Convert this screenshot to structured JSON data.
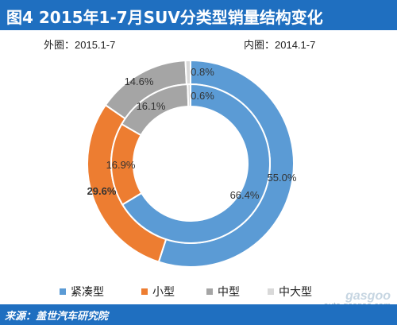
{
  "header": {
    "title": "图4  2015年1-7月SUV分类型销量结构变化"
  },
  "subtitles": {
    "outer": "外圈：2015.1-7",
    "inner": "内圈：2014.1-7"
  },
  "chart_data": {
    "type": "pie",
    "variant": "double-donut",
    "categories": [
      "紧凑型",
      "小型",
      "中型",
      "中大型"
    ],
    "colors": [
      "#5b9bd5",
      "#ed7d31",
      "#a5a5a5",
      "#d9d9d9"
    ],
    "series": [
      {
        "name": "外圈：2015.1-7",
        "ring": "outer",
        "values": [
          55.0,
          29.6,
          14.6,
          0.8
        ],
        "labels": [
          "55.0%",
          "29.6%",
          "14.6%",
          "0.8%"
        ]
      },
      {
        "name": "内圈：2014.1-7",
        "ring": "inner",
        "values": [
          66.4,
          16.9,
          16.1,
          0.6
        ],
        "labels": [
          "66.4%",
          "16.9%",
          "16.1%",
          "0.6%"
        ]
      }
    ],
    "legend_position": "bottom"
  },
  "footer": {
    "source": "来源：盖世汽车研究院"
  },
  "watermark": {
    "brand": "gasgoo",
    "url": "auto.gasgoo.com"
  }
}
